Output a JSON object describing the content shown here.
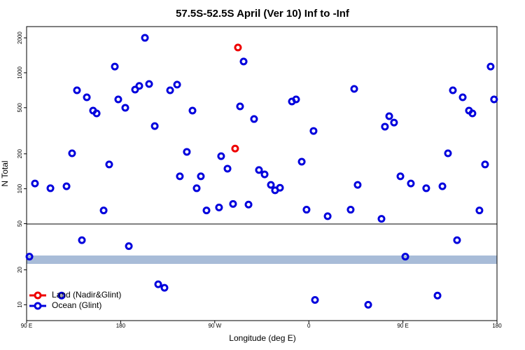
{
  "chart_data": {
    "type": "scatter",
    "title": "57.5S-52.5S April (Ver 10)   Inf to -Inf",
    "x_label": "Longitude (deg E)",
    "y_label": "N Total",
    "xlim": [
      90,
      540
    ],
    "ylim": [
      7.3,
      2500
    ],
    "log_y": true,
    "xticks": [
      {
        "value": 90,
        "label": "90 E"
      },
      {
        "value": 180,
        "label": "180"
      },
      {
        "value": 270,
        "label": "90 W"
      },
      {
        "value": 360,
        "label": "0"
      },
      {
        "value": 450,
        "label": "90 E"
      },
      {
        "value": 540,
        "label": "180"
      }
    ],
    "yticks": [
      10,
      20,
      50,
      100,
      200,
      500,
      1000,
      2000
    ],
    "legend_position": "lower left",
    "series": [
      {
        "name": "Land (Nadir&Glint)",
        "color": "#ee0000",
        "x": [
          292.2,
          289.5
        ],
        "values": [
          1650,
          222
        ]
      },
      {
        "name": "Ocean (Glint)",
        "color": "#0000dd",
        "x": [
          92.7,
          98,
          112.8,
          123.5,
          128.2,
          133.5,
          138.2,
          142.9,
          147.6,
          153.6,
          157,
          163.7,
          169,
          174.4,
          177.7,
          184.4,
          187.8,
          193.8,
          197.8,
          203.2,
          207.2,
          212.6,
          215.9,
          221.9,
          227.3,
          234,
          236.6,
          243.3,
          248.7,
          252.7,
          256.7,
          262.1,
          274.1,
          276.1,
          282.2,
          287.5,
          294.2,
          297.6,
          302.3,
          307.6,
          312.3,
          317.7,
          323.7,
          327.7,
          332.4,
          343.8,
          347.8,
          353.2,
          357.8,
          364.5,
          365.9,
          378,
          400,
          403.4,
          406.7,
          416.8,
          429.5,
          432.8,
          436.9,
          441.5,
          447.6,
          452.3,
          457.6,
          472.3,
          483.1,
          487.8,
          493.1,
          497.8,
          501.8,
          507.2,
          513.2,
          516.5,
          523.2,
          528.6,
          533.9,
          537.2
        ],
        "values": [
          26,
          111,
          101,
          12,
          105,
          202,
          706,
          36,
          614,
          472,
          446,
          65,
          162,
          1130,
          589,
          499,
          32,
          716,
          770,
          2000,
          800,
          347,
          15,
          14,
          706,
          790,
          128,
          208,
          472,
          101,
          128,
          65,
          69,
          191,
          149,
          74,
          513,
          1250,
          73,
          399,
          145,
          133,
          108,
          97,
          102,
          565,
          589,
          171,
          66,
          315,
          11,
          58,
          66,
          726,
          108,
          10,
          55,
          343,
          422,
          372,
          128,
          26,
          111,
          101,
          12,
          105,
          202,
          706,
          36,
          614,
          472,
          446,
          65,
          162,
          1130,
          589
        ]
      }
    ]
  }
}
